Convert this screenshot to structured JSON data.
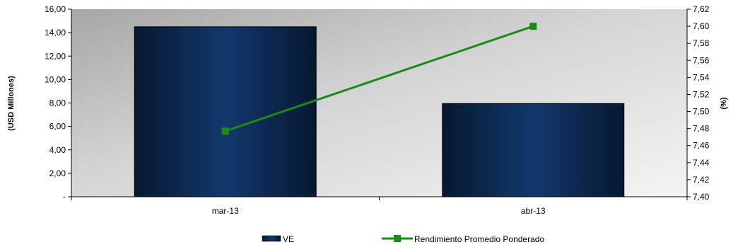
{
  "chart_data": {
    "type": "bar",
    "categories": [
      "mar-13",
      "abr-13"
    ],
    "series": [
      {
        "name": "VE",
        "type": "bar",
        "axis": "left",
        "values": [
          14.5,
          7.95
        ]
      },
      {
        "name": "Rendimiento Promedio Ponderado",
        "type": "line",
        "axis": "right",
        "values": [
          7.477,
          7.6
        ]
      }
    ],
    "ylabel": "(USD Millones)",
    "y2label": "(%)",
    "ylim": [
      0,
      16
    ],
    "y2lim": [
      7.4,
      7.62
    ],
    "yticks": [
      "-",
      "2,00",
      "4,00",
      "6,00",
      "8,00",
      "10,00",
      "12,00",
      "14,00",
      "16,00"
    ],
    "y2ticks": [
      "7,40",
      "7,42",
      "7,44",
      "7,46",
      "7,48",
      "7,50",
      "7,52",
      "7,54",
      "7,56",
      "7,58",
      "7,60",
      "7,62"
    ],
    "grid": false,
    "legend": "bottom",
    "colors": {
      "bar": "#0d2c5c",
      "line": "#1a8a1a"
    }
  }
}
